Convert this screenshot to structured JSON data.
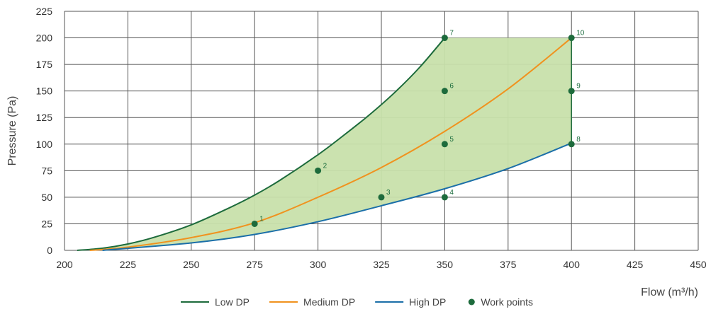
{
  "chart_data": {
    "type": "line",
    "xlabel": "Flow (m³/h)",
    "ylabel": "Pressure (Pa)",
    "xlim": [
      200,
      450
    ],
    "ylim": [
      0,
      225
    ],
    "xticks": [
      200,
      225,
      250,
      275,
      300,
      325,
      350,
      375,
      400,
      425,
      450
    ],
    "yticks": [
      0,
      25,
      50,
      75,
      100,
      125,
      150,
      175,
      200,
      225
    ],
    "grid": true,
    "legend_position": "bottom-center",
    "series": [
      {
        "name": "Low DP",
        "color": "#1d6b3c",
        "x": [
          205,
          215,
          225,
          235,
          250,
          265,
          275,
          285,
          300,
          310,
          320,
          330,
          340,
          350
        ],
        "y": [
          0,
          2,
          6,
          12,
          24,
          40,
          52,
          66,
          90,
          108,
          127,
          148,
          172,
          200
        ]
      },
      {
        "name": "Medium DP",
        "color": "#f0921e",
        "x": [
          210,
          225,
          250,
          275,
          300,
          325,
          350,
          375,
          400
        ],
        "y": [
          0,
          3,
          12,
          26,
          50,
          78,
          112,
          152,
          200
        ]
      },
      {
        "name": "High DP",
        "color": "#1b6fa8",
        "x": [
          215,
          250,
          275,
          300,
          325,
          350,
          375,
          400
        ],
        "y": [
          0,
          7,
          15,
          27,
          42,
          58,
          77,
          101
        ]
      },
      {
        "name": "Work points",
        "color": "#1d6b3c",
        "type": "scatter",
        "points": [
          {
            "label": "1",
            "x": 275,
            "y": 25
          },
          {
            "label": "2",
            "x": 300,
            "y": 75
          },
          {
            "label": "3",
            "x": 325,
            "y": 50
          },
          {
            "label": "4",
            "x": 350,
            "y": 50
          },
          {
            "label": "5",
            "x": 350,
            "y": 100
          },
          {
            "label": "6",
            "x": 350,
            "y": 150
          },
          {
            "label": "7",
            "x": 350,
            "y": 200
          },
          {
            "label": "8",
            "x": 400,
            "y": 100
          },
          {
            "label": "9",
            "x": 400,
            "y": 150
          },
          {
            "label": "10",
            "x": 400,
            "y": 200
          }
        ]
      }
    ],
    "area": {
      "color": "#c8e0ab",
      "bounded_by": [
        "Low DP",
        "High DP"
      ],
      "x_max": 400
    }
  }
}
